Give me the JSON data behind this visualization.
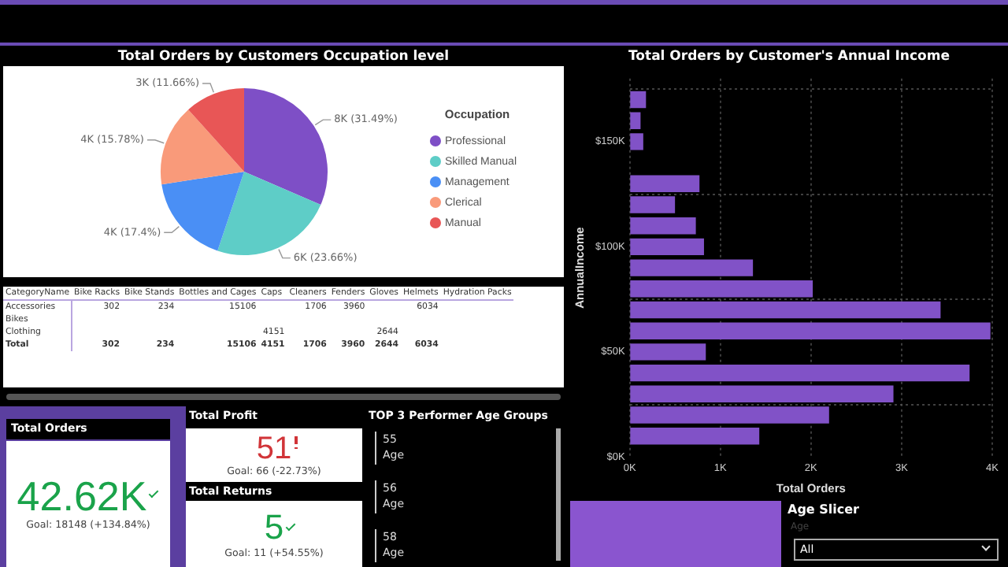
{
  "chart_data": [
    {
      "type": "pie",
      "title": "Total Orders by Customers Occupation level",
      "legend_title": "Occupation",
      "legend": "right",
      "categories": [
        "Professional",
        "Skilled Manual",
        "Management",
        "Clerical",
        "Manual"
      ],
      "values": [
        31.49,
        23.66,
        17.4,
        15.78,
        11.66
      ],
      "colors": [
        "#7e4fc6",
        "#5ecdc7",
        "#4a8ff5",
        "#f99a7a",
        "#e85656"
      ],
      "value_labels": [
        "8K (31.49%)",
        "6K (23.66%)",
        "4K (17.4%)",
        "4K (15.78%)",
        "3K (11.66%)"
      ]
    },
    {
      "type": "bar",
      "orientation": "horizontal",
      "title": "Total Orders by Customer's Annual Income",
      "xlabel": "Total Orders",
      "ylabel": "AnnualIncome",
      "grid": true,
      "x": [
        10000,
        20000,
        30000,
        40000,
        50000,
        60000,
        70000,
        80000,
        90000,
        100000,
        110000,
        120000,
        130000,
        150000,
        160000,
        170000
      ],
      "values": [
        1430,
        2200,
        2910,
        3750,
        840,
        3980,
        3430,
        2020,
        1360,
        820,
        730,
        500,
        770,
        150,
        120,
        180
      ],
      "color": "#8152c7",
      "xlim": [
        0,
        4000
      ],
      "xticks": [
        {
          "value": 0,
          "label": "0K"
        },
        {
          "value": 1000,
          "label": "1K"
        },
        {
          "value": 2000,
          "label": "2K"
        },
        {
          "value": 3000,
          "label": "3K"
        },
        {
          "value": 4000,
          "label": "4K"
        }
      ],
      "ylim": [
        0,
        180000
      ],
      "yticks": [
        {
          "value": 0,
          "label": "$0K"
        },
        {
          "value": 50000,
          "label": "$50K"
        },
        {
          "value": 100000,
          "label": "$100K"
        },
        {
          "value": 150000,
          "label": "$150K"
        }
      ]
    },
    {
      "type": "other",
      "categories": [
        "CategoryName",
        "Bike Racks",
        "Bike Stands",
        "Bottles and Cages",
        "Caps",
        "Cleaners",
        "Fenders",
        "Gloves",
        "Helmets",
        "Hydration Packs"
      ],
      "y_categories": [
        "Accessories",
        "Bikes",
        "Clothing",
        "Total"
      ],
      "cell_labels": [
        [
          "302",
          "234",
          "15106",
          null,
          "1706",
          "3960",
          null,
          "6034",
          null
        ],
        [
          null,
          null,
          null,
          null,
          null,
          null,
          null,
          null,
          null
        ],
        [
          null,
          null,
          null,
          "4151",
          null,
          null,
          "2644",
          null,
          null
        ],
        [
          "302",
          "234",
          "15106",
          "4151",
          "1706",
          "3960",
          "2644",
          "6034",
          null
        ]
      ]
    },
    {
      "type": "other",
      "title": "Total Orders",
      "annotations": [
        "42.62K",
        "Goal: 18148 (+134.84%)"
      ]
    },
    {
      "type": "other",
      "title": "Total Profit",
      "annotations": [
        "51",
        "Goal: 66 (-22.73%)"
      ]
    },
    {
      "type": "other",
      "title": "Total Returns",
      "annotations": [
        "5",
        "Goal: 11 (+54.55%)"
      ]
    },
    {
      "type": "other",
      "title": "TOP 3 Performer Age Groups",
      "annotations": [
        "55",
        "Age",
        "56",
        "Age",
        "58",
        "Age"
      ]
    },
    {
      "type": "other",
      "title": "Age Slicer",
      "annotations": [
        "Age",
        "All"
      ]
    }
  ]
}
